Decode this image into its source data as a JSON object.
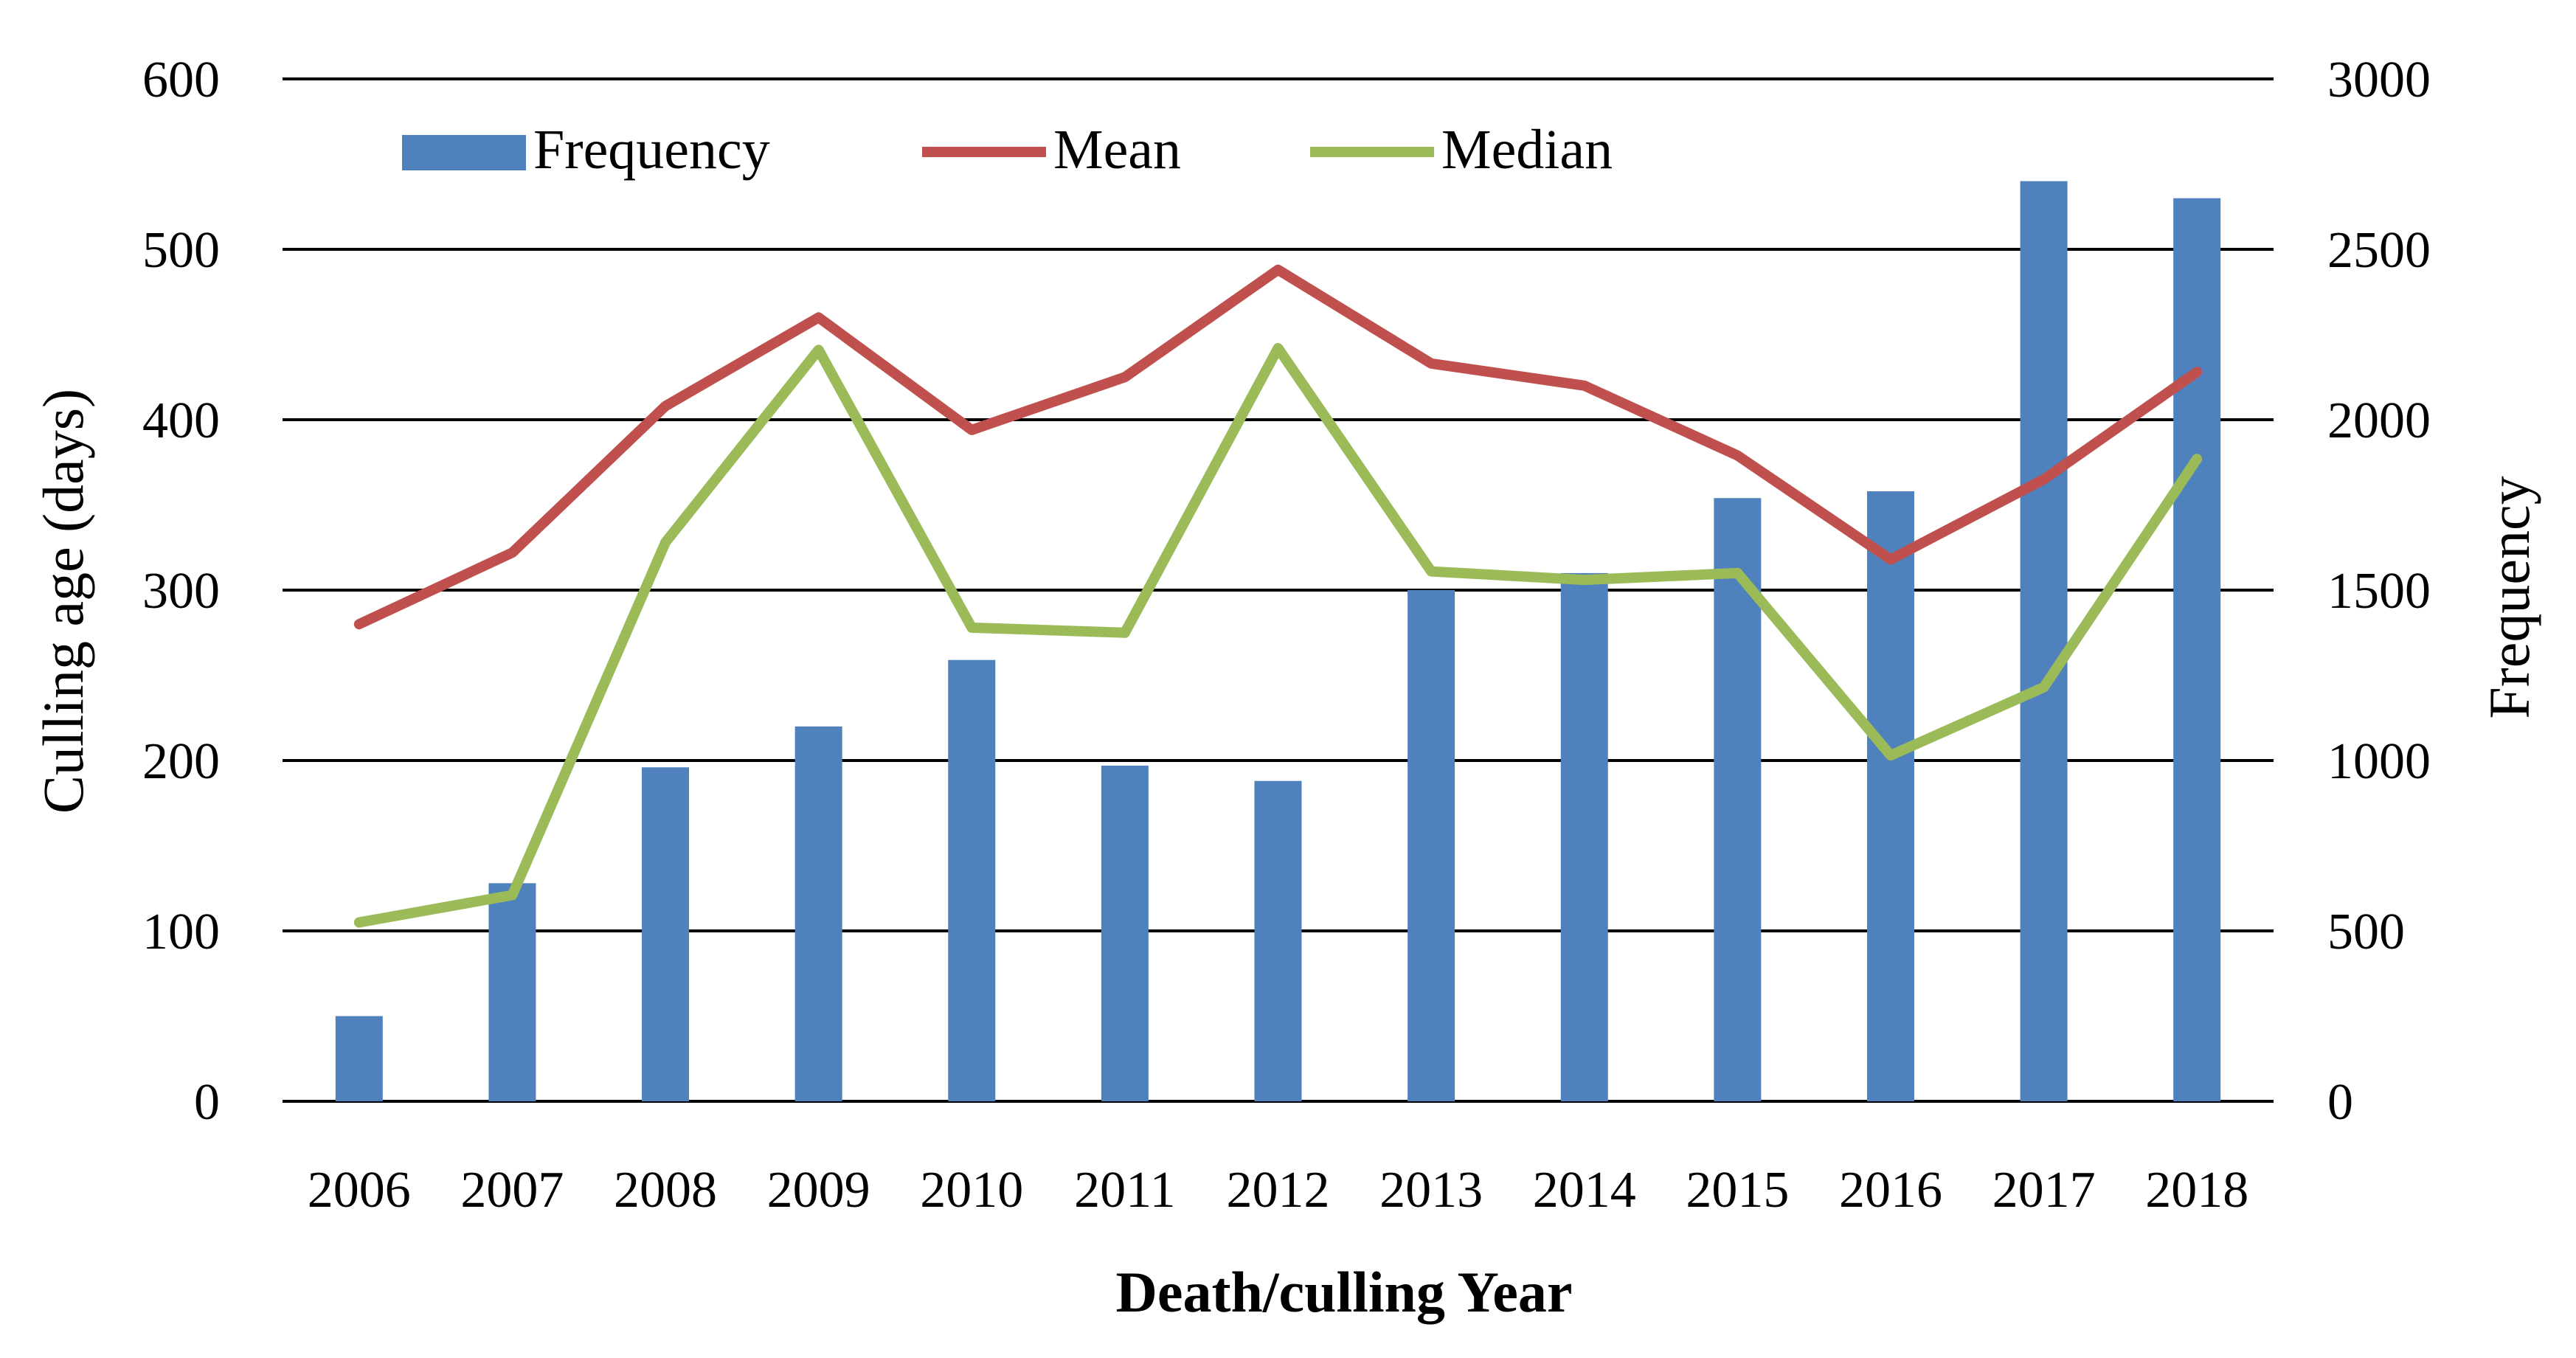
{
  "chart_data": {
    "type": "bar",
    "title": "",
    "xlabel": "Death/culling Year",
    "ylabel": "Culling age (days)",
    "y2label": "Frequency",
    "categories": [
      "2006",
      "2007",
      "2008",
      "2009",
      "2010",
      "2011",
      "2012",
      "2013",
      "2014",
      "2015",
      "2016",
      "2017",
      "2018"
    ],
    "ylim": [
      0,
      600
    ],
    "y_ticks": [
      0,
      100,
      200,
      300,
      400,
      500,
      600
    ],
    "y2lim": [
      0,
      3000
    ],
    "y2_ticks": [
      0,
      500,
      1000,
      1500,
      2000,
      2500,
      3000
    ],
    "grid": true,
    "legend_position": "top",
    "series": [
      {
        "name": "Frequency",
        "type": "bar",
        "axis": "right",
        "color": "#4F81BD",
        "values": [
          250,
          640,
          980,
          1100,
          1295,
          985,
          940,
          1500,
          1550,
          1770,
          1790,
          2700,
          2650
        ]
      },
      {
        "name": "Mean",
        "type": "line",
        "axis": "left",
        "color": "#C0504D",
        "values": [
          280,
          322,
          408,
          460,
          394,
          425,
          488,
          433,
          420,
          379,
          318,
          365,
          428
        ]
      },
      {
        "name": "Median",
        "type": "line",
        "axis": "left",
        "color": "#9BBB59",
        "values": [
          105,
          121,
          328,
          441,
          278,
          275,
          442,
          311,
          306,
          310,
          203,
          243,
          377
        ]
      }
    ]
  }
}
